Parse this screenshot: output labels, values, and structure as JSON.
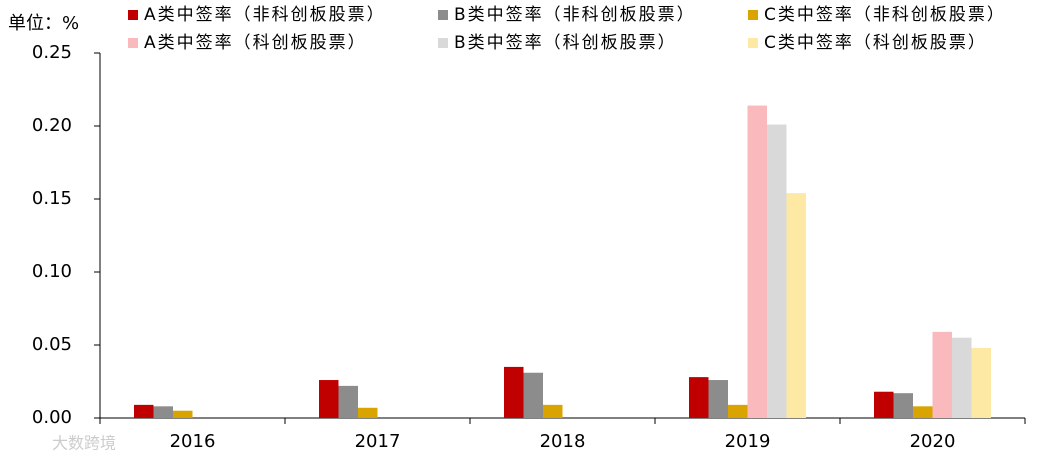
{
  "chart_data": {
    "type": "bar",
    "unit_label": "单位：%",
    "watermark": "大数跨境",
    "categories": [
      "2016",
      "2017",
      "2018",
      "2019",
      "2020"
    ],
    "series": [
      {
        "name": "A类中签率（非科创板股票）",
        "color": "#c00000",
        "values": [
          0.009,
          0.026,
          0.035,
          0.028,
          0.018
        ]
      },
      {
        "name": "B类中签率（非科创板股票）",
        "color": "#8c8c8c",
        "values": [
          0.008,
          0.022,
          0.031,
          0.026,
          0.017
        ]
      },
      {
        "name": "C类中签率（非科创板股票）",
        "color": "#d9a400",
        "values": [
          0.005,
          0.007,
          0.009,
          0.009,
          0.008
        ]
      },
      {
        "name": "A类中签率（科创板股票）",
        "color": "#f9b9bd",
        "values": [
          null,
          null,
          null,
          0.214,
          0.059
        ]
      },
      {
        "name": "B类中签率（科创板股票）",
        "color": "#d9d9d9",
        "values": [
          null,
          null,
          null,
          0.201,
          0.055
        ]
      },
      {
        "name": "C类中签率（科创板股票）",
        "color": "#fde9a3",
        "values": [
          null,
          null,
          null,
          0.154,
          0.048
        ]
      }
    ],
    "ylim": [
      0,
      0.25
    ],
    "yticks": [
      {
        "value": 0,
        "label": "0.00"
      },
      {
        "value": 0.05,
        "label": "0.05"
      },
      {
        "value": 0.1,
        "label": "0.10"
      },
      {
        "value": 0.15,
        "label": "0.15"
      },
      {
        "value": 0.2,
        "label": "0.20"
      },
      {
        "value": 0.25,
        "label": "0.25"
      }
    ],
    "legend_position": "top"
  }
}
